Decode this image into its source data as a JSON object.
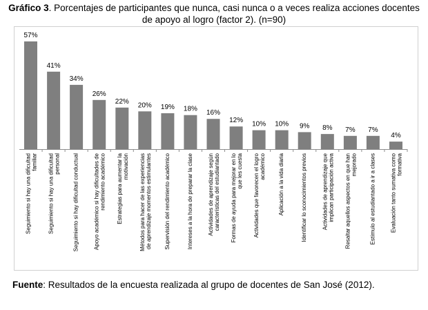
{
  "title": {
    "prefix": "Gráfico 3",
    "text": ". Porcentajes de participantes que nunca, casi nunca o a veces realiza acciones docentes de apoyo al logro (factor 2). (n=90)"
  },
  "source": {
    "prefix": "Fuente",
    "text": ": Resultados de la encuesta realizada al grupo de docentes de San José (2012)."
  },
  "colors": {
    "bar": "#7f7f7f",
    "axis": "#8c8c8c",
    "frame": "#d0d0d0"
  },
  "chart_data": {
    "type": "bar",
    "categories": [
      [
        "Seguimiento si hay una dificultad",
        "familiar"
      ],
      [
        "Seguimiento si hay una dificultad",
        "personal"
      ],
      [
        "Seguimiento si hay dificultad conductual"
      ],
      [
        "Apoyo académico si hay dificultades de",
        "rendimiento académico"
      ],
      [
        "Estrategias para aumentar la",
        "motivación"
      ],
      [
        "Métodos para hacer de las experiencias",
        "de aprendizaje momentos estimulantes"
      ],
      [
        "Supervisión del rendimiento académico"
      ],
      [
        "Intereses a la hora de preparar la clase"
      ],
      [
        "Actividades de aprendizaje según",
        "características del estudiantado"
      ],
      [
        "Formas de ayuda para mejorar en lo",
        "que les cuesta"
      ],
      [
        "Actividades que favorecen el logro",
        "académico"
      ],
      [
        "Aplicación a la vida diaria"
      ],
      [
        "Identificar lo sconocimientos previos"
      ],
      [
        "Actividades de aprendizaje que",
        "implican participación activa"
      ],
      [
        "Resaltar aquellos aspectos en que han",
        "mejorado"
      ],
      [
        "Estímulo al estudiantado a ir a clases"
      ],
      [
        "Evaluación tanto sumativa como",
        "formativa"
      ]
    ],
    "values": [
      57,
      41,
      34,
      26,
      22,
      20,
      19,
      18,
      16,
      12,
      10,
      10,
      9,
      8,
      7,
      7,
      4
    ],
    "value_labels": [
      "57%",
      "41%",
      "34%",
      "26%",
      "22%",
      "20%",
      "19%",
      "18%",
      "16%",
      "12%",
      "10%",
      "10%",
      "9%",
      "8%",
      "7%",
      "7%",
      "4%"
    ],
    "ylim": [
      0,
      57
    ],
    "grid": false,
    "legend": "none"
  }
}
